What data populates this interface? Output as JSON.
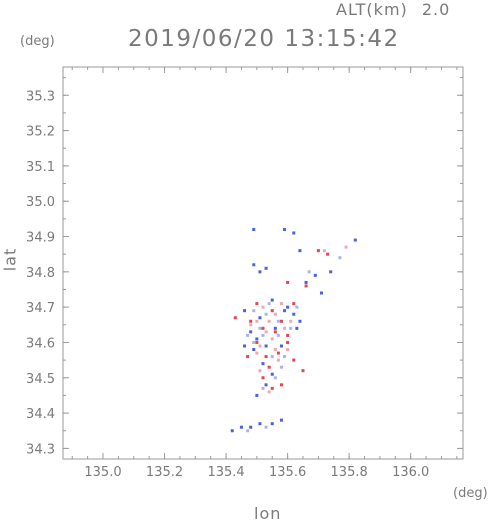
{
  "header": {
    "altitude_label": "ALT(km)",
    "altitude_value": "2.0",
    "timestamp": "2019/06/20 13:15:42"
  },
  "chart_data": {
    "type": "scatter",
    "title": "2019/06/20 13:15:42",
    "xlabel": "lon",
    "ylabel": "lat",
    "x_unit": "(deg)",
    "y_unit": "(deg)",
    "xlim": [
      134.87,
      136.17
    ],
    "ylim": [
      34.27,
      35.38
    ],
    "x_ticks": [
      "135.0",
      "135.2",
      "135.4",
      "135.6",
      "135.8",
      "136.0"
    ],
    "y_ticks": [
      "34.3",
      "34.4",
      "34.5",
      "34.6",
      "34.7",
      "34.8",
      "34.9",
      "35.0",
      "35.1",
      "35.2",
      "35.3"
    ],
    "grid": false,
    "colors": {
      "red": "#e8434f",
      "blue": "#4b5fe0",
      "pink": "#f0a8b4",
      "lightblue": "#a8b4f0"
    },
    "series": [
      {
        "color": "red",
        "points": [
          [
            135.52,
            34.5
          ],
          [
            135.55,
            34.47
          ],
          [
            135.58,
            34.48
          ],
          [
            135.53,
            34.56
          ],
          [
            135.57,
            34.57
          ],
          [
            135.5,
            34.6
          ],
          [
            135.6,
            34.62
          ],
          [
            135.52,
            34.64
          ],
          [
            135.48,
            34.66
          ],
          [
            135.55,
            34.69
          ],
          [
            135.58,
            34.66
          ],
          [
            135.62,
            34.71
          ],
          [
            135.5,
            34.71
          ],
          [
            135.43,
            34.67
          ],
          [
            135.66,
            34.76
          ],
          [
            135.7,
            34.86
          ],
          [
            135.73,
            34.85
          ],
          [
            135.6,
            34.77
          ],
          [
            135.65,
            34.52
          ],
          [
            135.62,
            34.55
          ],
          [
            135.47,
            34.56
          ],
          [
            135.56,
            34.63
          ],
          [
            135.6,
            34.6
          ],
          [
            135.54,
            34.53
          ]
        ]
      },
      {
        "color": "blue",
        "points": [
          [
            135.5,
            34.61
          ],
          [
            135.53,
            34.59
          ],
          [
            135.56,
            34.64
          ],
          [
            135.48,
            34.63
          ],
          [
            135.62,
            34.68
          ],
          [
            135.55,
            34.72
          ],
          [
            135.51,
            34.67
          ],
          [
            135.52,
            34.54
          ],
          [
            135.55,
            34.51
          ],
          [
            135.58,
            34.59
          ],
          [
            135.59,
            34.69
          ],
          [
            135.63,
            34.64
          ],
          [
            135.46,
            34.69
          ],
          [
            135.49,
            34.58
          ],
          [
            135.6,
            34.7
          ],
          [
            135.64,
            34.66
          ],
          [
            135.5,
            34.45
          ],
          [
            135.53,
            34.48
          ],
          [
            135.42,
            34.35
          ],
          [
            135.45,
            34.36
          ],
          [
            135.48,
            34.36
          ],
          [
            135.51,
            34.37
          ],
          [
            135.55,
            34.37
          ],
          [
            135.58,
            34.38
          ],
          [
            135.49,
            34.82
          ],
          [
            135.51,
            34.8
          ],
          [
            135.53,
            34.81
          ],
          [
            135.49,
            34.92
          ],
          [
            135.59,
            34.92
          ],
          [
            135.62,
            34.91
          ],
          [
            135.66,
            34.77
          ],
          [
            135.69,
            34.79
          ],
          [
            135.71,
            34.74
          ],
          [
            135.74,
            34.8
          ],
          [
            135.82,
            34.89
          ],
          [
            135.64,
            34.86
          ],
          [
            135.46,
            34.59
          ]
        ]
      },
      {
        "color": "pink",
        "points": [
          [
            135.51,
            34.59
          ],
          [
            135.55,
            34.61
          ],
          [
            135.57,
            34.55
          ],
          [
            135.54,
            34.66
          ],
          [
            135.52,
            34.7
          ],
          [
            135.59,
            34.64
          ],
          [
            135.5,
            34.57
          ],
          [
            135.53,
            34.63
          ],
          [
            135.56,
            34.58
          ],
          [
            135.61,
            34.66
          ],
          [
            135.48,
            34.65
          ],
          [
            135.58,
            34.71
          ],
          [
            135.72,
            34.86
          ],
          [
            135.79,
            34.87
          ],
          [
            135.51,
            34.52
          ],
          [
            135.54,
            34.46
          ],
          [
            135.56,
            34.68
          ],
          [
            135.5,
            34.66
          ],
          [
            135.6,
            34.58
          ]
        ]
      },
      {
        "color": "lightblue",
        "points": [
          [
            135.52,
            34.62
          ],
          [
            135.49,
            34.6
          ],
          [
            135.57,
            34.62
          ],
          [
            135.55,
            34.56
          ],
          [
            135.53,
            34.68
          ],
          [
            135.61,
            34.64
          ],
          [
            135.47,
            34.62
          ],
          [
            135.58,
            34.53
          ],
          [
            135.52,
            34.47
          ],
          [
            135.56,
            34.5
          ],
          [
            135.63,
            34.7
          ],
          [
            135.49,
            34.69
          ],
          [
            135.67,
            34.8
          ],
          [
            135.77,
            34.84
          ],
          [
            135.47,
            34.35
          ],
          [
            135.53,
            34.36
          ],
          [
            135.57,
            34.66
          ],
          [
            135.51,
            34.64
          ],
          [
            135.54,
            34.71
          ],
          [
            135.59,
            34.56
          ]
        ]
      }
    ]
  }
}
